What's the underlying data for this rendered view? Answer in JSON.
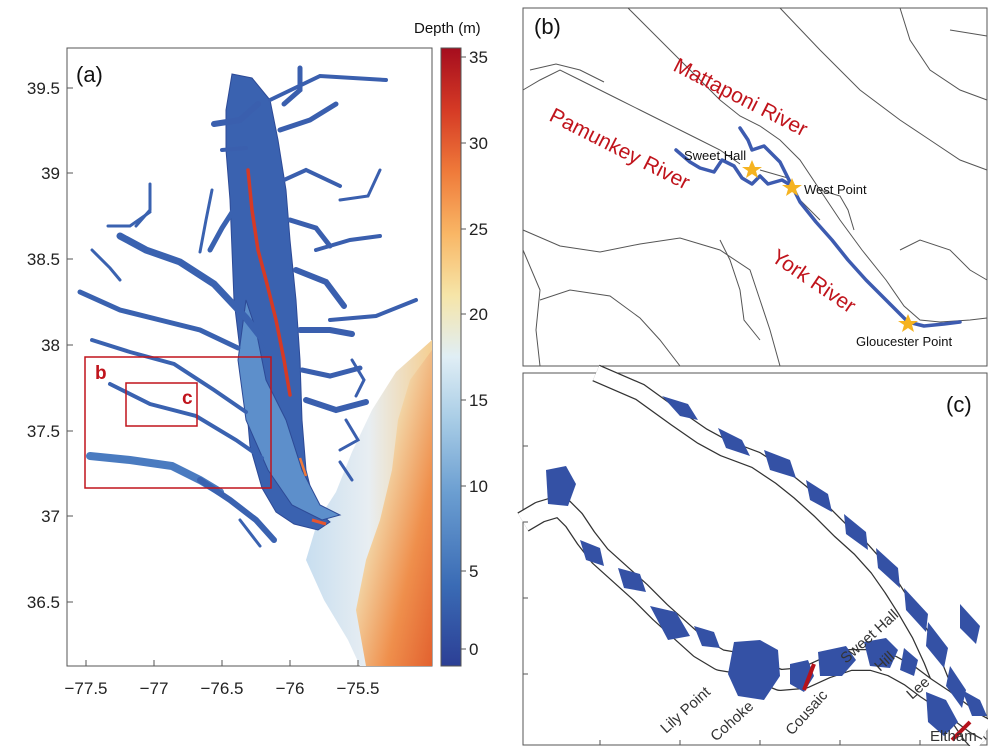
{
  "panels": {
    "a": {
      "label": "(a)",
      "y_ticks": [
        "39.5",
        "39",
        "38.5",
        "38",
        "37.5",
        "37",
        "36.5"
      ],
      "x_ticks": [
        "−77.5",
        "−77",
        "−76.5",
        "−76",
        "−75.5"
      ],
      "inset_labels": {
        "b": "b",
        "c": "c"
      },
      "colorbar": {
        "title": "Depth (m)",
        "ticks": [
          "35",
          "30",
          "25",
          "20",
          "15",
          "10",
          "5",
          "0"
        ],
        "range": [
          -1,
          35
        ],
        "colors": [
          "#2c3f95",
          "#3a6bb5",
          "#6b9ed1",
          "#a9cde6",
          "#e0eef5",
          "#f6e5a8",
          "#f9b665",
          "#ef7a3a",
          "#d53a25",
          "#a50d1e"
        ]
      }
    },
    "b": {
      "label": "(b)",
      "rivers": {
        "mattaponi": "Mattaponi River",
        "pamunkey": "Pamunkey River",
        "york": "York River"
      },
      "places": {
        "sweet_hall": "Sweet Hall",
        "west_point": "West Point",
        "gloucester_point": "Gloucester Point"
      },
      "marker_color": "#f5b321"
    },
    "c": {
      "label": "(c)",
      "reaches": {
        "lily_point": "Lily Point",
        "cohoke": "Cohoke",
        "cousaic": "Cousaic",
        "sweet_hall": "Sweet Hall",
        "hill": "Hill",
        "lee": "Lee",
        "eltham": "Eltham"
      }
    }
  },
  "colors": {
    "water": "#3451a5",
    "river_line": "#3d5bb0",
    "annotation_red": "#c0141c",
    "outline": "#444444"
  }
}
